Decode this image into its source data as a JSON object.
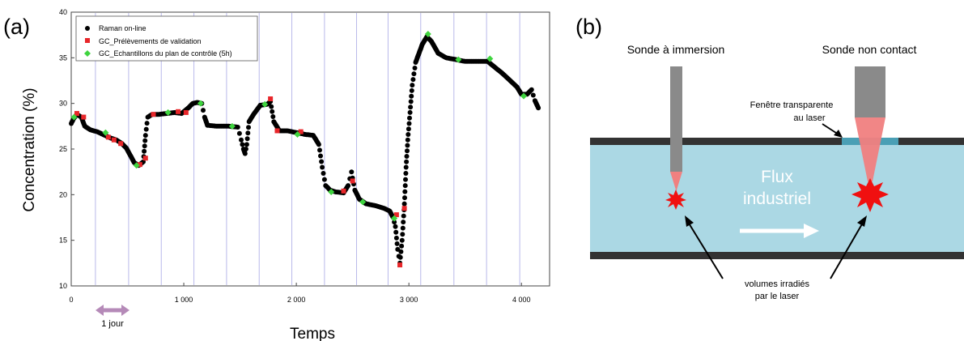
{
  "panel_a": {
    "label": "(a)",
    "chart_data": {
      "type": "scatter",
      "xlabel": "Temps",
      "ylabel": "Concentration (%)",
      "xlim": [
        0,
        4250
      ],
      "ylim": [
        10,
        40
      ],
      "x_ticks": [
        "0",
        "1 000",
        "2 000",
        "3 000",
        "4 000"
      ],
      "y_ticks": [
        "10",
        "15",
        "20",
        "25",
        "30",
        "35",
        "40"
      ],
      "x_tick_values": [
        0,
        1000,
        2000,
        3000,
        4000
      ],
      "y_tick_values": [
        10,
        15,
        20,
        25,
        30,
        35,
        40
      ],
      "vertical_gridlines": [
        215,
        510,
        800,
        1090,
        1380,
        1670,
        1960,
        2250,
        2535,
        2815,
        3105,
        3400,
        3690,
        3985
      ],
      "legend_position": "top-left",
      "annotation": "1 jour",
      "series": [
        {
          "name": "Raman on-line",
          "color": "#000000",
          "marker": "circle",
          "trace": [
            [
              0,
              27.8
            ],
            [
              20,
              28.3
            ],
            [
              50,
              28.8
            ],
            [
              90,
              28.5
            ],
            [
              120,
              27.5
            ],
            [
              170,
              27.1
            ],
            [
              230,
              26.9
            ],
            [
              300,
              26.5
            ],
            [
              350,
              26.2
            ],
            [
              400,
              26.0
            ],
            [
              450,
              25.6
            ],
            [
              490,
              25.1
            ],
            [
              530,
              24.2
            ],
            [
              560,
              23.5
            ],
            [
              600,
              23.2
            ],
            [
              640,
              23.6
            ],
            [
              660,
              26.5
            ],
            [
              680,
              28.5
            ],
            [
              720,
              28.8
            ],
            [
              780,
              28.8
            ],
            [
              850,
              28.9
            ],
            [
              920,
              29.0
            ],
            [
              980,
              28.9
            ],
            [
              1040,
              29.5
            ],
            [
              1080,
              30.0
            ],
            [
              1120,
              30.1
            ],
            [
              1160,
              30.0
            ],
            [
              1185,
              28.5
            ],
            [
              1210,
              27.6
            ],
            [
              1300,
              27.5
            ],
            [
              1400,
              27.5
            ],
            [
              1480,
              27.4
            ],
            [
              1510,
              26.0
            ],
            [
              1530,
              25.0
            ],
            [
              1545,
              24.5
            ],
            [
              1560,
              25.5
            ],
            [
              1580,
              28.0
            ],
            [
              1620,
              28.8
            ],
            [
              1680,
              29.8
            ],
            [
              1740,
              29.9
            ],
            [
              1770,
              30.2
            ],
            [
              1800,
              28.0
            ],
            [
              1850,
              27.0
            ],
            [
              1920,
              27.0
            ],
            [
              2000,
              26.8
            ],
            [
              2080,
              26.6
            ],
            [
              2150,
              26.5
            ],
            [
              2200,
              25.5
            ],
            [
              2230,
              23.0
            ],
            [
              2260,
              21.0
            ],
            [
              2300,
              20.5
            ],
            [
              2350,
              20.3
            ],
            [
              2420,
              20.2
            ],
            [
              2460,
              21.0
            ],
            [
              2490,
              22.5
            ],
            [
              2520,
              20.5
            ],
            [
              2560,
              19.5
            ],
            [
              2620,
              19.0
            ],
            [
              2700,
              18.8
            ],
            [
              2780,
              18.5
            ],
            [
              2830,
              18.2
            ],
            [
              2860,
              17.5
            ],
            [
              2880,
              16.5
            ],
            [
              2900,
              14.0
            ],
            [
              2920,
              12.5
            ],
            [
              2940,
              15.0
            ],
            [
              2960,
              19.0
            ],
            [
              2975,
              23.0
            ],
            [
              2990,
              26.0
            ],
            [
              3010,
              29.0
            ],
            [
              3030,
              32.0
            ],
            [
              3060,
              34.5
            ],
            [
              3090,
              35.5
            ],
            [
              3120,
              36.5
            ],
            [
              3160,
              37.3
            ],
            [
              3200,
              36.8
            ],
            [
              3260,
              35.5
            ],
            [
              3330,
              35.0
            ],
            [
              3420,
              34.8
            ],
            [
              3500,
              34.6
            ],
            [
              3600,
              34.6
            ],
            [
              3700,
              34.6
            ],
            [
              3760,
              34.0
            ],
            [
              3830,
              33.3
            ],
            [
              3900,
              32.5
            ],
            [
              3960,
              31.8
            ],
            [
              4000,
              31.0
            ],
            [
              4050,
              31.0
            ],
            [
              4090,
              31.5
            ],
            [
              4120,
              30.3
            ],
            [
              4150,
              29.5
            ]
          ]
        },
        {
          "name": "GC_Prélèvements de validation",
          "color": "#e8262a",
          "marker": "square",
          "points": [
            [
              50,
              28.9
            ],
            [
              110,
              28.5
            ],
            [
              330,
              26.3
            ],
            [
              380,
              26.0
            ],
            [
              440,
              25.6
            ],
            [
              610,
              23.3
            ],
            [
              660,
              24.0
            ],
            [
              730,
              28.8
            ],
            [
              950,
              29.1
            ],
            [
              1020,
              29.0
            ],
            [
              1770,
              30.5
            ],
            [
              1830,
              27.0
            ],
            [
              2040,
              26.9
            ],
            [
              2420,
              20.4
            ],
            [
              2500,
              21.5
            ],
            [
              2890,
              17.8
            ],
            [
              2920,
              12.3
            ],
            [
              2960,
              18.5
            ]
          ]
        },
        {
          "name": "GC_Echantillons du plan de contrôle (5h)",
          "color": "#3fd43f",
          "marker": "diamond",
          "points": [
            [
              25,
              28.5
            ],
            [
              305,
              26.8
            ],
            [
              580,
              23.2
            ],
            [
              860,
              29.0
            ],
            [
              1150,
              30.0
            ],
            [
              1430,
              27.5
            ],
            [
              1720,
              29.9
            ],
            [
              2010,
              26.6
            ],
            [
              2310,
              20.3
            ],
            [
              2590,
              19.2
            ],
            [
              2870,
              17.4
            ],
            [
              3170,
              37.6
            ],
            [
              3440,
              34.8
            ],
            [
              3720,
              34.9
            ],
            [
              4020,
              30.8
            ]
          ]
        }
      ]
    }
  },
  "panel_b": {
    "label": "(b)",
    "probe_immersion_title": "Sonde à immersion",
    "probe_noncontact_title": "Sonde non contact",
    "window_label_line1": "Fenêtre transparente",
    "window_label_line2": "au laser",
    "flow_label_line1": "Flux",
    "flow_label_line2": "industriel",
    "irradiated_label_line1": "volumes irradiés",
    "irradiated_label_line2": "par le laser",
    "colors": {
      "pipe_fill": "#abd8e4",
      "pipe_wall": "#333333",
      "probe": "#8a8a8a",
      "laser": "#f08080",
      "window": "#4a9fb5",
      "spot": "#f01010"
    }
  }
}
